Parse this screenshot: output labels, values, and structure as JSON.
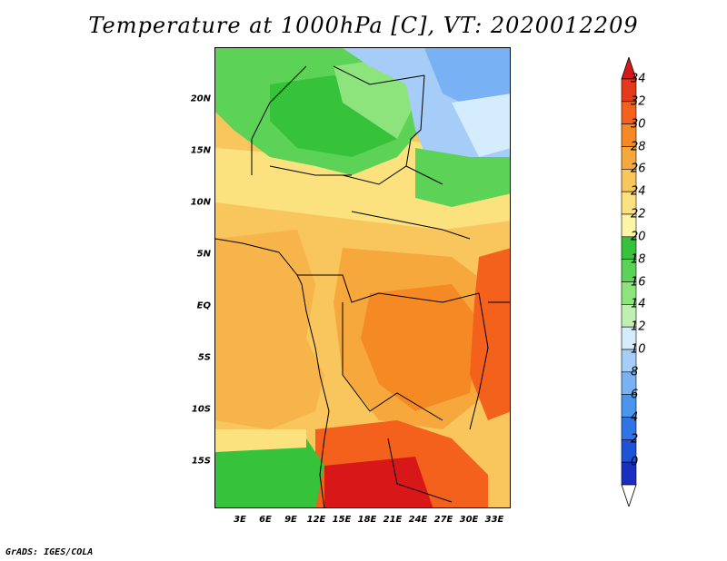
{
  "title": "Temperature at 1000hPa [C], VT: 2020012209",
  "credit": "GrADS: IGES/COLA",
  "map": {
    "lat_labels": [
      "20N",
      "15N",
      "10N",
      "5N",
      "EQ",
      "5S",
      "10S",
      "15S"
    ],
    "lon_labels": [
      "3E",
      "6E",
      "9E",
      "12E",
      "15E",
      "18E",
      "21E",
      "24E",
      "27E",
      "30E",
      "33E"
    ],
    "region": "Central Africa"
  },
  "colorbar": {
    "levels": [
      "0",
      "2",
      "4",
      "6",
      "8",
      "10",
      "12",
      "14",
      "16",
      "18",
      "20",
      "22",
      "24",
      "26",
      "28",
      "30",
      "32",
      "34"
    ],
    "colors": [
      "#10107a",
      "#1a2ec0",
      "#1f52d6",
      "#2f74e6",
      "#4b95ef",
      "#78b2f4",
      "#a6cdf7",
      "#d4ecfb",
      "#bff0b2",
      "#8ee47c",
      "#5cd257",
      "#36c23a",
      "#fdf5a6",
      "#fbe27f",
      "#f8c65c",
      "#f6a83c",
      "#f58a24",
      "#f3611c",
      "#e5391c",
      "#d81818"
    ]
  }
}
